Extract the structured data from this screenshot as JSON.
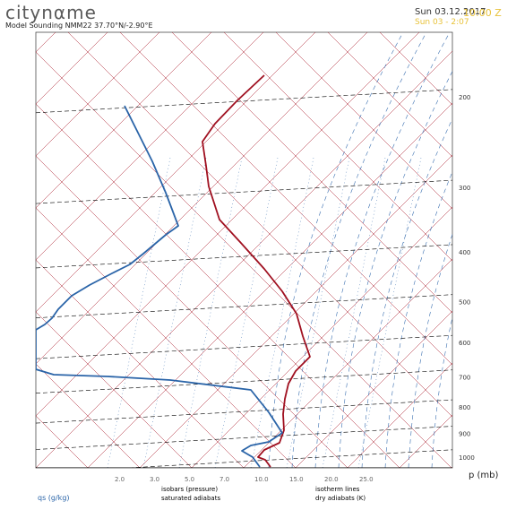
{
  "header": {
    "brand": "citynαme",
    "subtitle": "Model Sounding NMM22 37.70°N/-2.90°E",
    "date1": "Sun 03.12.2017",
    "time1": "10:00 Z",
    "date2": "Sun 03 - 2:07"
  },
  "colors": {
    "isotherm": "#a8182a",
    "mixing": "#3a6fb0",
    "temperature": "#a01020",
    "dewpoint": "#2a64a8",
    "pressure": "#000000"
  },
  "chart_data": {
    "type": "line",
    "xlabel": "qs (g/kg)",
    "ylabel": "p (mb)",
    "y_ticks": [
      200,
      300,
      400,
      500,
      600,
      700,
      800,
      900,
      1000
    ],
    "x_ticks": [
      "2.0",
      "3.0",
      "5.0",
      "7.0",
      "10.0",
      "15.0",
      "20.0",
      "25.0"
    ],
    "legend": [
      {
        "label": "isobars (pressure)",
        "color": "#1a2a6a"
      },
      {
        "label": "saturated adiabats",
        "color": "#3a6fb0"
      },
      {
        "label": "isotherm lines",
        "color": "#a8182a"
      },
      {
        "label": "dry adiabats (K)",
        "color": "#a8182a"
      }
    ],
    "series": [
      {
        "name": "temperature",
        "points": [
          [
            295,
            84
          ],
          [
            265,
            112
          ],
          [
            240,
            138
          ],
          [
            226,
            158
          ],
          [
            230,
            185
          ],
          [
            233,
            208
          ],
          [
            245,
            245
          ],
          [
            268,
            270
          ],
          [
            295,
            300
          ],
          [
            315,
            325
          ],
          [
            331,
            350
          ],
          [
            338,
            375
          ],
          [
            346,
            398
          ],
          [
            330,
            414
          ],
          [
            322,
            428
          ],
          [
            318,
            445
          ],
          [
            316,
            462
          ],
          [
            317,
            480
          ],
          [
            312,
            494
          ],
          [
            295,
            502
          ],
          [
            288,
            510
          ],
          [
            296,
            513
          ],
          [
            302,
            521
          ]
        ]
      },
      {
        "name": "dewpoint",
        "points": [
          [
            139,
            118
          ],
          [
            150,
            140
          ],
          [
            170,
            180
          ],
          [
            185,
            215
          ],
          [
            199,
            252
          ],
          [
            185,
            262
          ],
          [
            160,
            283
          ],
          [
            145,
            295
          ],
          [
            125,
            305
          ],
          [
            100,
            318
          ],
          [
            80,
            330
          ],
          [
            65,
            345
          ],
          [
            58,
            355
          ],
          [
            50,
            362
          ],
          [
            40,
            368
          ],
          [
            40,
            412
          ],
          [
            60,
            418
          ],
          [
            120,
            420
          ],
          [
            190,
            424
          ],
          [
            280,
            435
          ],
          [
            300,
            460
          ],
          [
            315,
            483
          ],
          [
            300,
            493
          ],
          [
            280,
            497
          ],
          [
            270,
            503
          ],
          [
            282,
            510
          ],
          [
            290,
            521
          ]
        ]
      }
    ]
  }
}
